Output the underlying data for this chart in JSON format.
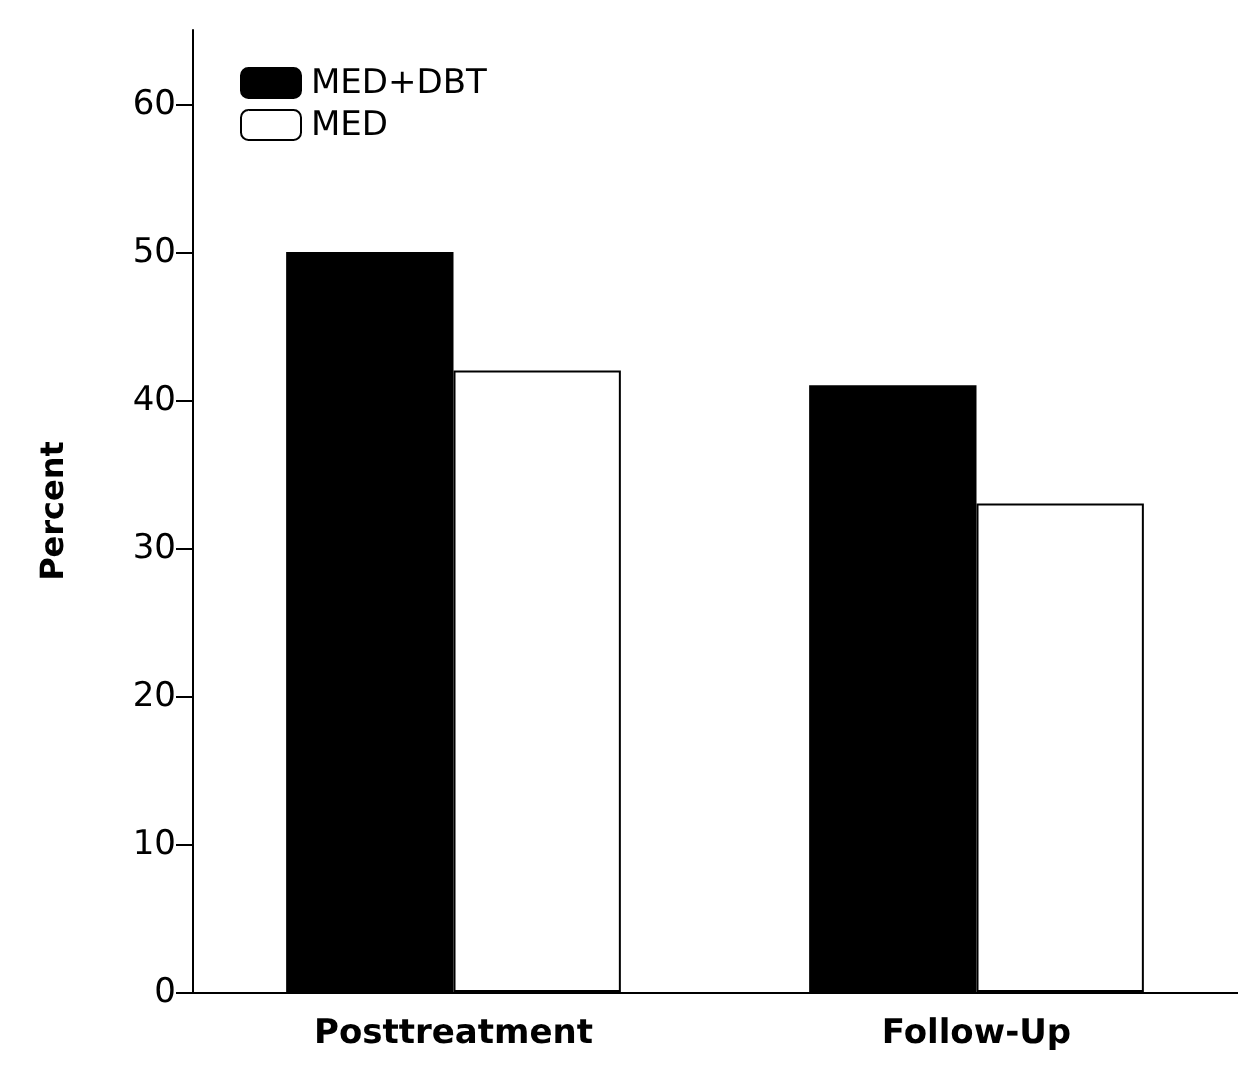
{
  "chart_data": {
    "type": "bar",
    "ylabel": "Percent",
    "categories": [
      "Posttreatment",
      "Follow-Up"
    ],
    "series": [
      {
        "name": "MED+DBT",
        "color": "#000000",
        "values": [
          50,
          41
        ]
      },
      {
        "name": "MED",
        "color": "#ffffff",
        "values": [
          42,
          33
        ]
      }
    ],
    "ylim": [
      0,
      65
    ],
    "yticks": [
      0,
      10,
      20,
      30,
      40,
      50,
      60
    ],
    "grid": false,
    "legend": "top left"
  }
}
